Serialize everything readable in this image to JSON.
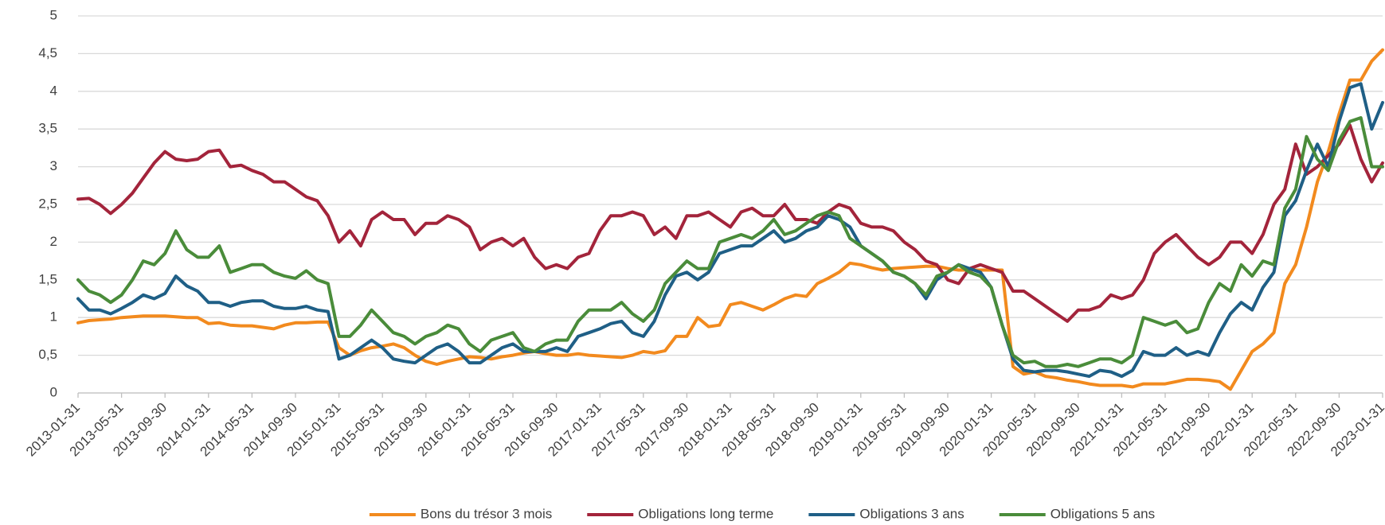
{
  "chart_data": {
    "type": "line",
    "categories": [
      "2013-01-31",
      null,
      null,
      null,
      "2013-05-31",
      null,
      null,
      null,
      "2013-09-30",
      null,
      null,
      null,
      "2014-01-31",
      null,
      null,
      null,
      "2014-05-31",
      null,
      null,
      null,
      "2014-09-30",
      null,
      null,
      null,
      "2015-01-31",
      null,
      null,
      null,
      "2015-05-31",
      null,
      null,
      null,
      "2015-09-30",
      null,
      null,
      null,
      "2016-01-31",
      null,
      null,
      null,
      "2016-05-31",
      null,
      null,
      null,
      "2016-09-30",
      null,
      null,
      null,
      "2017-01-31",
      null,
      null,
      null,
      "2017-05-31",
      null,
      null,
      null,
      "2017-09-30",
      null,
      null,
      null,
      "2018-01-31",
      null,
      null,
      null,
      "2018-05-31",
      null,
      null,
      null,
      "2018-09-30",
      null,
      null,
      null,
      "2019-01-31",
      null,
      null,
      null,
      "2019-05-31",
      null,
      null,
      null,
      "2019-09-30",
      null,
      null,
      null,
      "2020-01-31",
      null,
      null,
      null,
      "2020-05-31",
      null,
      null,
      null,
      "2020-09-30",
      null,
      null,
      null,
      "2021-01-31",
      null,
      null,
      null,
      "2021-05-31",
      null,
      null,
      null,
      "2021-09-30",
      null,
      null,
      null,
      "2022-01-31",
      null,
      null,
      null,
      "2022-05-31",
      null,
      null,
      null,
      "2022-09-30",
      null,
      null,
      null,
      "2023-01-31"
    ],
    "series": [
      {
        "name": "Bons du trésor 3 mois",
        "color": "#f28a1e",
        "values": [
          0.93,
          0.96,
          0.97,
          0.98,
          1.0,
          1.01,
          1.02,
          1.02,
          1.02,
          1.01,
          1.0,
          1.0,
          0.92,
          0.93,
          0.9,
          0.89,
          0.89,
          0.87,
          0.85,
          0.9,
          0.93,
          0.93,
          0.94,
          0.94,
          0.6,
          0.5,
          0.56,
          0.6,
          0.62,
          0.65,
          0.6,
          0.5,
          0.42,
          0.38,
          0.42,
          0.45,
          0.48,
          0.47,
          0.45,
          0.48,
          0.5,
          0.53,
          0.55,
          0.52,
          0.5,
          0.5,
          0.52,
          0.5,
          0.49,
          0.48,
          0.47,
          0.5,
          0.55,
          0.53,
          0.56,
          0.75,
          0.75,
          1.0,
          0.88,
          0.9,
          1.17,
          1.2,
          1.15,
          1.1,
          1.17,
          1.25,
          1.3,
          1.28,
          1.45,
          1.52,
          1.6,
          1.72,
          1.7,
          1.66,
          1.63,
          1.65,
          1.66,
          1.67,
          1.68,
          1.68,
          1.65,
          1.63,
          1.63,
          1.63,
          1.63,
          1.63,
          0.35,
          0.25,
          0.28,
          0.22,
          0.2,
          0.17,
          0.15,
          0.12,
          0.1,
          0.1,
          0.1,
          0.08,
          0.12,
          0.12,
          0.12,
          0.15,
          0.18,
          0.18,
          0.17,
          0.15,
          0.05,
          0.3,
          0.55,
          0.65,
          0.8,
          1.45,
          1.7,
          2.2,
          2.8,
          3.2,
          3.7,
          4.15,
          4.15,
          4.4,
          4.55
        ]
      },
      {
        "name": "Obligations long terme",
        "color": "#a3243b",
        "values": [
          2.57,
          2.58,
          2.5,
          2.38,
          2.5,
          2.65,
          2.85,
          3.05,
          3.2,
          3.1,
          3.08,
          3.1,
          3.2,
          3.22,
          3.0,
          3.02,
          2.95,
          2.9,
          2.8,
          2.8,
          2.7,
          2.6,
          2.55,
          2.35,
          2.0,
          2.15,
          1.95,
          2.3,
          2.4,
          2.3,
          2.3,
          2.1,
          2.25,
          2.25,
          2.35,
          2.3,
          2.2,
          1.9,
          2.0,
          2.05,
          1.95,
          2.05,
          1.8,
          1.65,
          1.7,
          1.65,
          1.8,
          1.85,
          2.15,
          2.35,
          2.35,
          2.4,
          2.35,
          2.1,
          2.2,
          2.05,
          2.35,
          2.35,
          2.4,
          2.3,
          2.2,
          2.4,
          2.45,
          2.35,
          2.35,
          2.5,
          2.3,
          2.3,
          2.25,
          2.4,
          2.5,
          2.45,
          2.25,
          2.2,
          2.2,
          2.15,
          2.0,
          1.9,
          1.75,
          1.7,
          1.5,
          1.45,
          1.65,
          1.7,
          1.65,
          1.6,
          1.35,
          1.35,
          1.25,
          1.15,
          1.05,
          0.95,
          1.1,
          1.1,
          1.15,
          1.3,
          1.25,
          1.3,
          1.5,
          1.85,
          2.0,
          2.1,
          1.95,
          1.8,
          1.7,
          1.8,
          2.0,
          2.0,
          1.85,
          2.1,
          2.5,
          2.7,
          3.3,
          2.9,
          3.0,
          3.15,
          3.3,
          3.55,
          3.1,
          2.8,
          3.05
        ]
      },
      {
        "name": "Obligations 3 ans",
        "color": "#1f5f86",
        "values": [
          1.25,
          1.1,
          1.1,
          1.05,
          1.12,
          1.2,
          1.3,
          1.25,
          1.32,
          1.55,
          1.42,
          1.35,
          1.2,
          1.2,
          1.15,
          1.2,
          1.22,
          1.22,
          1.15,
          1.12,
          1.12,
          1.15,
          1.1,
          1.08,
          0.45,
          0.5,
          0.6,
          0.7,
          0.6,
          0.45,
          0.42,
          0.4,
          0.5,
          0.6,
          0.65,
          0.55,
          0.4,
          0.4,
          0.5,
          0.6,
          0.65,
          0.55,
          0.55,
          0.55,
          0.6,
          0.55,
          0.75,
          0.8,
          0.85,
          0.92,
          0.95,
          0.8,
          0.75,
          0.95,
          1.3,
          1.55,
          1.6,
          1.5,
          1.6,
          1.85,
          1.9,
          1.95,
          1.95,
          2.05,
          2.15,
          2.0,
          2.05,
          2.15,
          2.2,
          2.35,
          2.3,
          2.2,
          1.95,
          1.85,
          1.75,
          1.6,
          1.55,
          1.45,
          1.25,
          1.5,
          1.6,
          1.7,
          1.65,
          1.6,
          1.4,
          0.9,
          0.45,
          0.3,
          0.28,
          0.3,
          0.3,
          0.28,
          0.25,
          0.22,
          0.3,
          0.28,
          0.22,
          0.3,
          0.55,
          0.5,
          0.5,
          0.6,
          0.5,
          0.55,
          0.5,
          0.8,
          1.05,
          1.2,
          1.1,
          1.4,
          1.6,
          2.35,
          2.55,
          2.95,
          3.3,
          3.0,
          3.6,
          4.05,
          4.1,
          3.5,
          3.85
        ]
      },
      {
        "name": "Obligations 5 ans",
        "color": "#4a8c3a",
        "values": [
          1.5,
          1.35,
          1.3,
          1.2,
          1.3,
          1.5,
          1.75,
          1.7,
          1.85,
          2.15,
          1.9,
          1.8,
          1.8,
          1.95,
          1.6,
          1.65,
          1.7,
          1.7,
          1.6,
          1.55,
          1.52,
          1.62,
          1.5,
          1.45,
          0.75,
          0.75,
          0.9,
          1.1,
          0.95,
          0.8,
          0.75,
          0.65,
          0.75,
          0.8,
          0.9,
          0.85,
          0.65,
          0.55,
          0.7,
          0.75,
          0.8,
          0.6,
          0.55,
          0.65,
          0.7,
          0.7,
          0.95,
          1.1,
          1.1,
          1.1,
          1.2,
          1.05,
          0.95,
          1.1,
          1.45,
          1.6,
          1.75,
          1.65,
          1.65,
          2.0,
          2.05,
          2.1,
          2.05,
          2.15,
          2.3,
          2.1,
          2.15,
          2.25,
          2.35,
          2.4,
          2.35,
          2.05,
          1.95,
          1.85,
          1.75,
          1.6,
          1.55,
          1.45,
          1.3,
          1.55,
          1.6,
          1.7,
          1.6,
          1.55,
          1.4,
          0.9,
          0.5,
          0.4,
          0.42,
          0.35,
          0.35,
          0.38,
          0.35,
          0.4,
          0.45,
          0.45,
          0.4,
          0.5,
          1.0,
          0.95,
          0.9,
          0.95,
          0.8,
          0.85,
          1.2,
          1.45,
          1.35,
          1.7,
          1.55,
          1.75,
          1.7,
          2.45,
          2.7,
          3.4,
          3.1,
          2.95,
          3.35,
          3.6,
          3.65,
          3.0,
          3.0
        ]
      }
    ],
    "ylim": [
      0,
      5
    ],
    "yticks": [
      0,
      {
        "value": 0.5,
        "label": "0,5"
      },
      1,
      {
        "value": 1.5,
        "label": "1,5"
      },
      2,
      {
        "value": 2.5,
        "label": "2,5"
      },
      3,
      {
        "value": 3.5,
        "label": "3,5"
      },
      4,
      {
        "value": 4.5,
        "label": "4,5"
      },
      5
    ],
    "grid": true,
    "legend": "bottom"
  }
}
